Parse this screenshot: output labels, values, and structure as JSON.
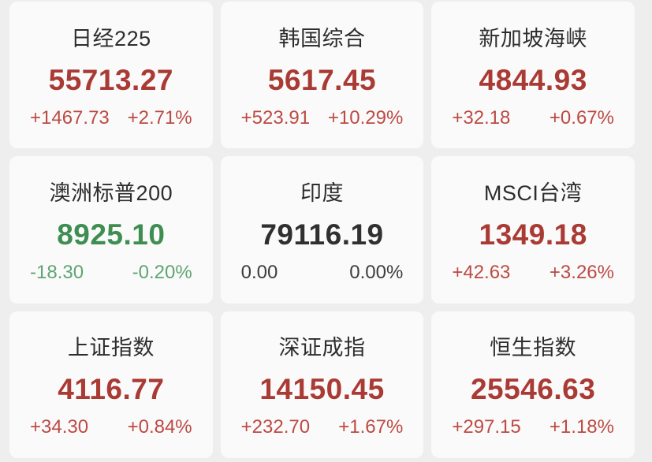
{
  "page": {
    "background_color": "#efeeee",
    "card_background_color": "#fbfafa"
  },
  "colors": {
    "up_value": "#a93a34",
    "up_change": "#bc4a43",
    "down_value": "#3e8e52",
    "down_change": "#5fa473",
    "flat_value": "#303030",
    "flat_change": "#3e3e3e",
    "title_text": "#2d2d2d"
  },
  "indices": [
    {
      "name": "日经225",
      "value": "55713.27",
      "change": "+1467.73",
      "change_pct": "+2.71%",
      "direction": "up"
    },
    {
      "name": "韩国综合",
      "value": "5617.45",
      "change": "+523.91",
      "change_pct": "+10.29%",
      "direction": "up"
    },
    {
      "name": "新加坡海峡",
      "value": "4844.93",
      "change": "+32.18",
      "change_pct": "+0.67%",
      "direction": "up"
    },
    {
      "name": "澳洲标普200",
      "value": "8925.10",
      "change": "-18.30",
      "change_pct": "-0.20%",
      "direction": "down"
    },
    {
      "name": "印度",
      "value": "79116.19",
      "change": "0.00",
      "change_pct": "0.00%",
      "direction": "flat"
    },
    {
      "name": "MSCI台湾",
      "value": "1349.18",
      "change": "+42.63",
      "change_pct": "+3.26%",
      "direction": "up"
    },
    {
      "name": "上证指数",
      "value": "4116.77",
      "change": "+34.30",
      "change_pct": "+0.84%",
      "direction": "up"
    },
    {
      "name": "深证成指",
      "value": "14150.45",
      "change": "+232.70",
      "change_pct": "+1.67%",
      "direction": "up"
    },
    {
      "name": "恒生指数",
      "value": "25546.63",
      "change": "+297.15",
      "change_pct": "+1.18%",
      "direction": "up"
    }
  ]
}
